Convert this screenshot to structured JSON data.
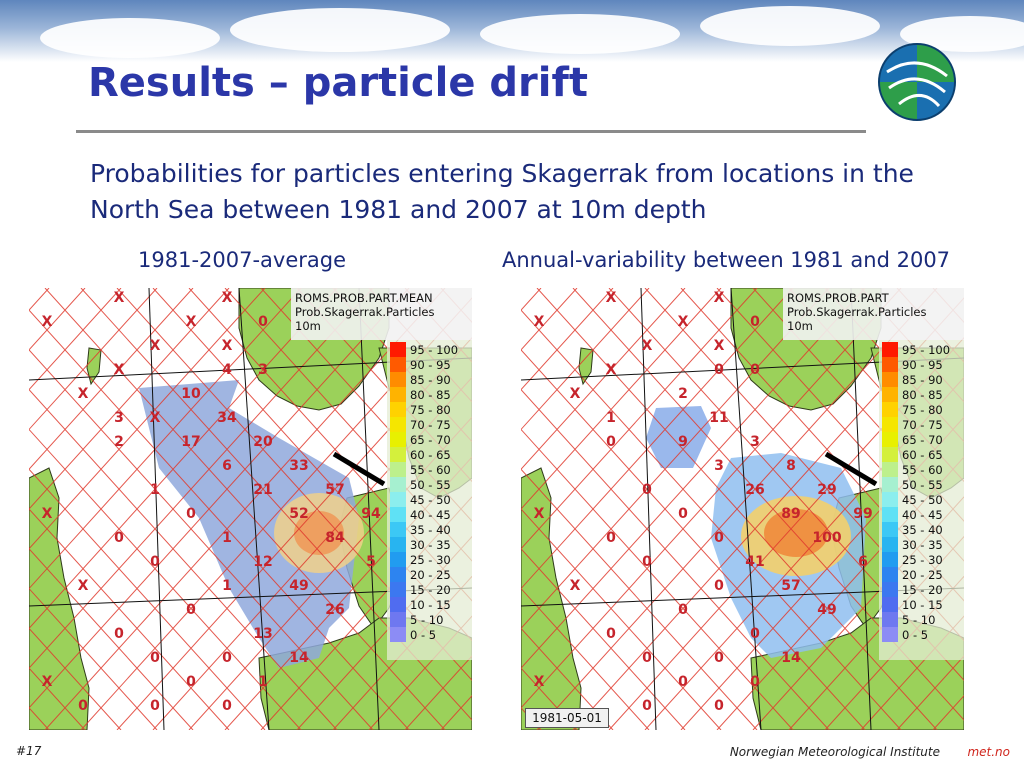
{
  "slide": {
    "title": "Results – particle drift",
    "subtitle": "Probabilities for particles entering Skagerrak from locations in the North Sea between 1981 and 2007 at 10m depth",
    "slide_number": "#17",
    "institute": "Norwegian Meteorological Institute",
    "site": "met.no",
    "accent_title_color": "#2b37a8",
    "accent_text_color": "#1a2a7a",
    "accent_site_color": "#d0261d"
  },
  "left_panel": {
    "caption": "1981-2007-average",
    "legend_title_lines": [
      "ROMS.PROB.PART.MEAN",
      "Prob.Skagerrak.Particles",
      "10m"
    ],
    "cell_labels": [
      {
        "text": "X",
        "gx": 2,
        "gy": 0
      },
      {
        "text": "X",
        "gx": 5,
        "gy": 0
      },
      {
        "text": "X",
        "gx": 4,
        "gy": 1
      },
      {
        "text": "0",
        "gx": 6,
        "gy": 1
      },
      {
        "text": "X",
        "gx": 0,
        "gy": 1
      },
      {
        "text": "X",
        "gx": 3,
        "gy": 2
      },
      {
        "text": "X",
        "gx": 5,
        "gy": 2
      },
      {
        "text": "X",
        "gx": 2,
        "gy": 3
      },
      {
        "text": "4",
        "gx": 5,
        "gy": 3
      },
      {
        "text": "3",
        "gx": 6,
        "gy": 3
      },
      {
        "text": "X",
        "gx": 1,
        "gy": 4
      },
      {
        "text": "10",
        "gx": 4,
        "gy": 4
      },
      {
        "text": "X",
        "gx": 3,
        "gy": 5
      },
      {
        "text": "34",
        "gx": 5,
        "gy": 5
      },
      {
        "text": "3",
        "gx": 2,
        "gy": 5
      },
      {
        "text": "17",
        "gx": 4,
        "gy": 6
      },
      {
        "text": "20",
        "gx": 6,
        "gy": 6
      },
      {
        "text": "2",
        "gx": 2,
        "gy": 6
      },
      {
        "text": "33",
        "gx": 7,
        "gy": 7
      },
      {
        "text": "6",
        "gx": 5,
        "gy": 7
      },
      {
        "text": "57",
        "gx": 8,
        "gy": 8
      },
      {
        "text": "21",
        "gx": 6,
        "gy": 8
      },
      {
        "text": "1",
        "gx": 3,
        "gy": 8
      },
      {
        "text": "94",
        "gx": 9,
        "gy": 9
      },
      {
        "text": "52",
        "gx": 7,
        "gy": 9
      },
      {
        "text": "0",
        "gx": 4,
        "gy": 9
      },
      {
        "text": "1",
        "gx": 5,
        "gy": 10
      },
      {
        "text": "84",
        "gx": 8,
        "gy": 10
      },
      {
        "text": "0",
        "gx": 2,
        "gy": 10
      },
      {
        "text": "12",
        "gx": 6,
        "gy": 11
      },
      {
        "text": "5",
        "gx": 9,
        "gy": 11
      },
      {
        "text": "0",
        "gx": 3,
        "gy": 11
      },
      {
        "text": "49",
        "gx": 7,
        "gy": 12
      },
      {
        "text": "1",
        "gx": 5,
        "gy": 12
      },
      {
        "text": "26",
        "gx": 8,
        "gy": 13
      },
      {
        "text": "0",
        "gx": 4,
        "gy": 13
      },
      {
        "text": "13",
        "gx": 6,
        "gy": 14
      },
      {
        "text": "0",
        "gx": 2,
        "gy": 14
      },
      {
        "text": "14",
        "gx": 7,
        "gy": 15
      },
      {
        "text": "0",
        "gx": 3,
        "gy": 15
      },
      {
        "text": "0",
        "gx": 5,
        "gy": 15
      },
      {
        "text": "0",
        "gx": 4,
        "gy": 16
      },
      {
        "text": "X",
        "gx": 0,
        "gy": 16
      },
      {
        "text": "1",
        "gx": 6,
        "gy": 16
      },
      {
        "text": "0",
        "gx": 3,
        "gy": 17
      },
      {
        "text": "0",
        "gx": 5,
        "gy": 17
      },
      {
        "text": "X",
        "gx": 1,
        "gy": 12
      },
      {
        "text": "X",
        "gx": 0,
        "gy": 9
      },
      {
        "text": "0",
        "gx": 1,
        "gy": 17
      }
    ]
  },
  "right_panel": {
    "caption": "Annual-variability between 1981 and 2007",
    "legend_title_lines": [
      "ROMS.PROB.PART",
      "Prob.Skagerrak.Particles",
      "10m"
    ],
    "date_label": "1981-05-01",
    "cell_labels": [
      {
        "text": "X",
        "gx": 2,
        "gy": 0
      },
      {
        "text": "X",
        "gx": 5,
        "gy": 0
      },
      {
        "text": "X",
        "gx": 4,
        "gy": 1
      },
      {
        "text": "0",
        "gx": 6,
        "gy": 1
      },
      {
        "text": "X",
        "gx": 0,
        "gy": 1
      },
      {
        "text": "X",
        "gx": 3,
        "gy": 2
      },
      {
        "text": "X",
        "gx": 5,
        "gy": 2
      },
      {
        "text": "X",
        "gx": 2,
        "gy": 3
      },
      {
        "text": "0",
        "gx": 5,
        "gy": 3
      },
      {
        "text": "0",
        "gx": 6,
        "gy": 3
      },
      {
        "text": "X",
        "gx": 1,
        "gy": 4
      },
      {
        "text": "2",
        "gx": 4,
        "gy": 4
      },
      {
        "text": "11",
        "gx": 5,
        "gy": 5
      },
      {
        "text": "1",
        "gx": 2,
        "gy": 5
      },
      {
        "text": "9",
        "gx": 4,
        "gy": 6
      },
      {
        "text": "3",
        "gx": 6,
        "gy": 6
      },
      {
        "text": "0",
        "gx": 2,
        "gy": 6
      },
      {
        "text": "8",
        "gx": 7,
        "gy": 7
      },
      {
        "text": "3",
        "gx": 5,
        "gy": 7
      },
      {
        "text": "29",
        "gx": 8,
        "gy": 8
      },
      {
        "text": "26",
        "gx": 6,
        "gy": 8
      },
      {
        "text": "0",
        "gx": 3,
        "gy": 8
      },
      {
        "text": "99",
        "gx": 9,
        "gy": 9
      },
      {
        "text": "89",
        "gx": 7,
        "gy": 9
      },
      {
        "text": "0",
        "gx": 4,
        "gy": 9
      },
      {
        "text": "0",
        "gx": 5,
        "gy": 10
      },
      {
        "text": "100",
        "gx": 8,
        "gy": 10
      },
      {
        "text": "0",
        "gx": 2,
        "gy": 10
      },
      {
        "text": "41",
        "gx": 6,
        "gy": 11
      },
      {
        "text": "6",
        "gx": 9,
        "gy": 11
      },
      {
        "text": "0",
        "gx": 3,
        "gy": 11
      },
      {
        "text": "57",
        "gx": 7,
        "gy": 12
      },
      {
        "text": "0",
        "gx": 5,
        "gy": 12
      },
      {
        "text": "49",
        "gx": 8,
        "gy": 13
      },
      {
        "text": "0",
        "gx": 4,
        "gy": 13
      },
      {
        "text": "0",
        "gx": 6,
        "gy": 14
      },
      {
        "text": "0",
        "gx": 2,
        "gy": 14
      },
      {
        "text": "14",
        "gx": 7,
        "gy": 15
      },
      {
        "text": "0",
        "gx": 3,
        "gy": 15
      },
      {
        "text": "0",
        "gx": 5,
        "gy": 15
      },
      {
        "text": "0",
        "gx": 4,
        "gy": 16
      },
      {
        "text": "X",
        "gx": 0,
        "gy": 16
      },
      {
        "text": "0",
        "gx": 6,
        "gy": 16
      },
      {
        "text": "0",
        "gx": 3,
        "gy": 17
      },
      {
        "text": "0",
        "gx": 5,
        "gy": 17
      },
      {
        "text": "X",
        "gx": 1,
        "gy": 12
      },
      {
        "text": "X",
        "gx": 0,
        "gy": 9
      }
    ]
  },
  "legend": {
    "ranges": [
      "95 - 100",
      "90 - 95",
      "85 - 90",
      "80 - 85",
      "75 - 80",
      "70 - 75",
      "65 - 70",
      "60 - 65",
      "55 - 60",
      "50 - 55",
      "45 - 50",
      "40 - 45",
      "35 - 40",
      "30 - 35",
      "25 - 30",
      "20 - 25",
      "15 - 20",
      "10 - 15",
      "5 - 10",
      "0 - 5"
    ],
    "colors": [
      "#ff1a00",
      "#ff5a00",
      "#ff8c00",
      "#ffb300",
      "#ffd200",
      "#f5e600",
      "#e8f000",
      "#d4f03c",
      "#bdf08c",
      "#a6f0d0",
      "#8ceeee",
      "#5fe1f5",
      "#3cc8f5",
      "#28b4f0",
      "#219cf0",
      "#2d84f0",
      "#3c78f0",
      "#506cf0",
      "#6e78f0",
      "#8c8cf5"
    ]
  }
}
